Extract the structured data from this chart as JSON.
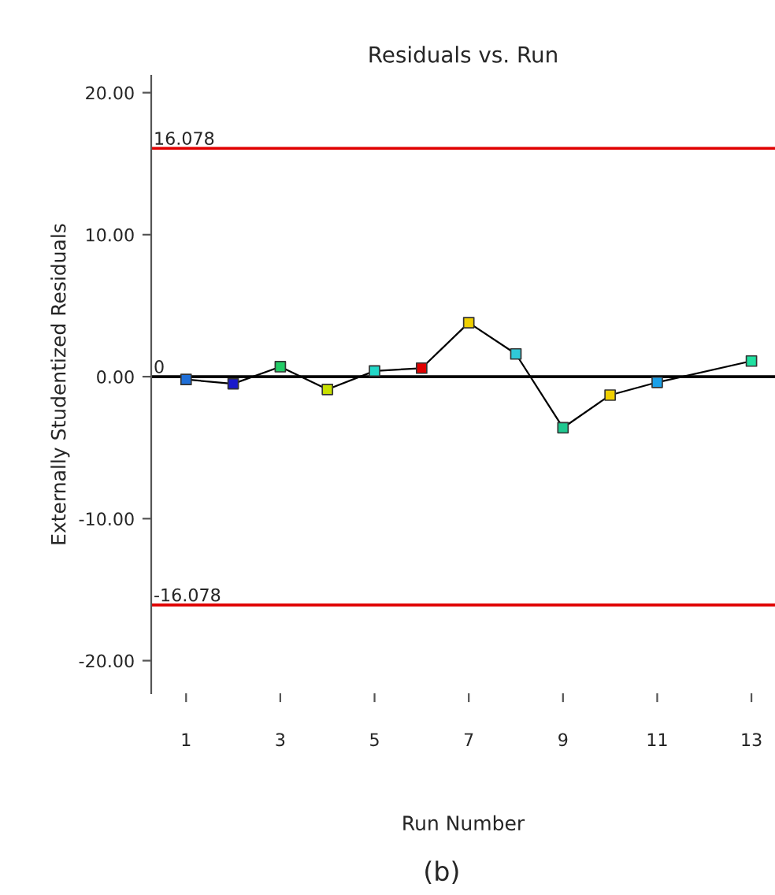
{
  "chart_data": {
    "type": "line",
    "title": "Residuals vs. Run",
    "xlabel": "Run Number",
    "ylabel": "Externally Studentized Residuals",
    "x": [
      1,
      2,
      3,
      4,
      5,
      6,
      7,
      8,
      9,
      10,
      11,
      13
    ],
    "series": [
      {
        "color": "#000000",
        "colors": [
          "#1f6fd8",
          "#1a1acc",
          "#22cc66",
          "#c8e000",
          "#22d8c8",
          "#e00000",
          "#f0d000",
          "#30c8d8",
          "#20c890",
          "#f0d000",
          "#1aa0e8",
          "#20e0a0"
        ],
        "values": [
          -0.2,
          -0.5,
          0.7,
          -0.9,
          0.4,
          0.6,
          3.8,
          1.6,
          -3.6,
          -1.3,
          -0.4,
          1.1
        ]
      }
    ],
    "marker": "square",
    "line_style": "solid",
    "grid": false,
    "legend": false,
    "xlim": [
      0.26,
      13.5
    ],
    "ylim": [
      -22.3,
      21.2
    ],
    "xticks": [
      1,
      3,
      5,
      7,
      9,
      11,
      13
    ],
    "yticks": [
      {
        "value": -20,
        "label": "-20.00"
      },
      {
        "value": -10,
        "label": "-10.00"
      },
      {
        "value": 0,
        "label": "0.00"
      },
      {
        "value": 10,
        "label": "10.00"
      },
      {
        "value": 20,
        "label": "20.00"
      }
    ],
    "ref_lines": [
      {
        "axis": "y",
        "value": 16.078,
        "label": "16.078",
        "color": "#e00000"
      },
      {
        "axis": "y",
        "value": 0,
        "label": "0",
        "color": "#000000"
      },
      {
        "axis": "y",
        "value": -16.078,
        "label": "-16.078",
        "color": "#e00000"
      }
    ],
    "annotations": [
      "(b)"
    ]
  }
}
